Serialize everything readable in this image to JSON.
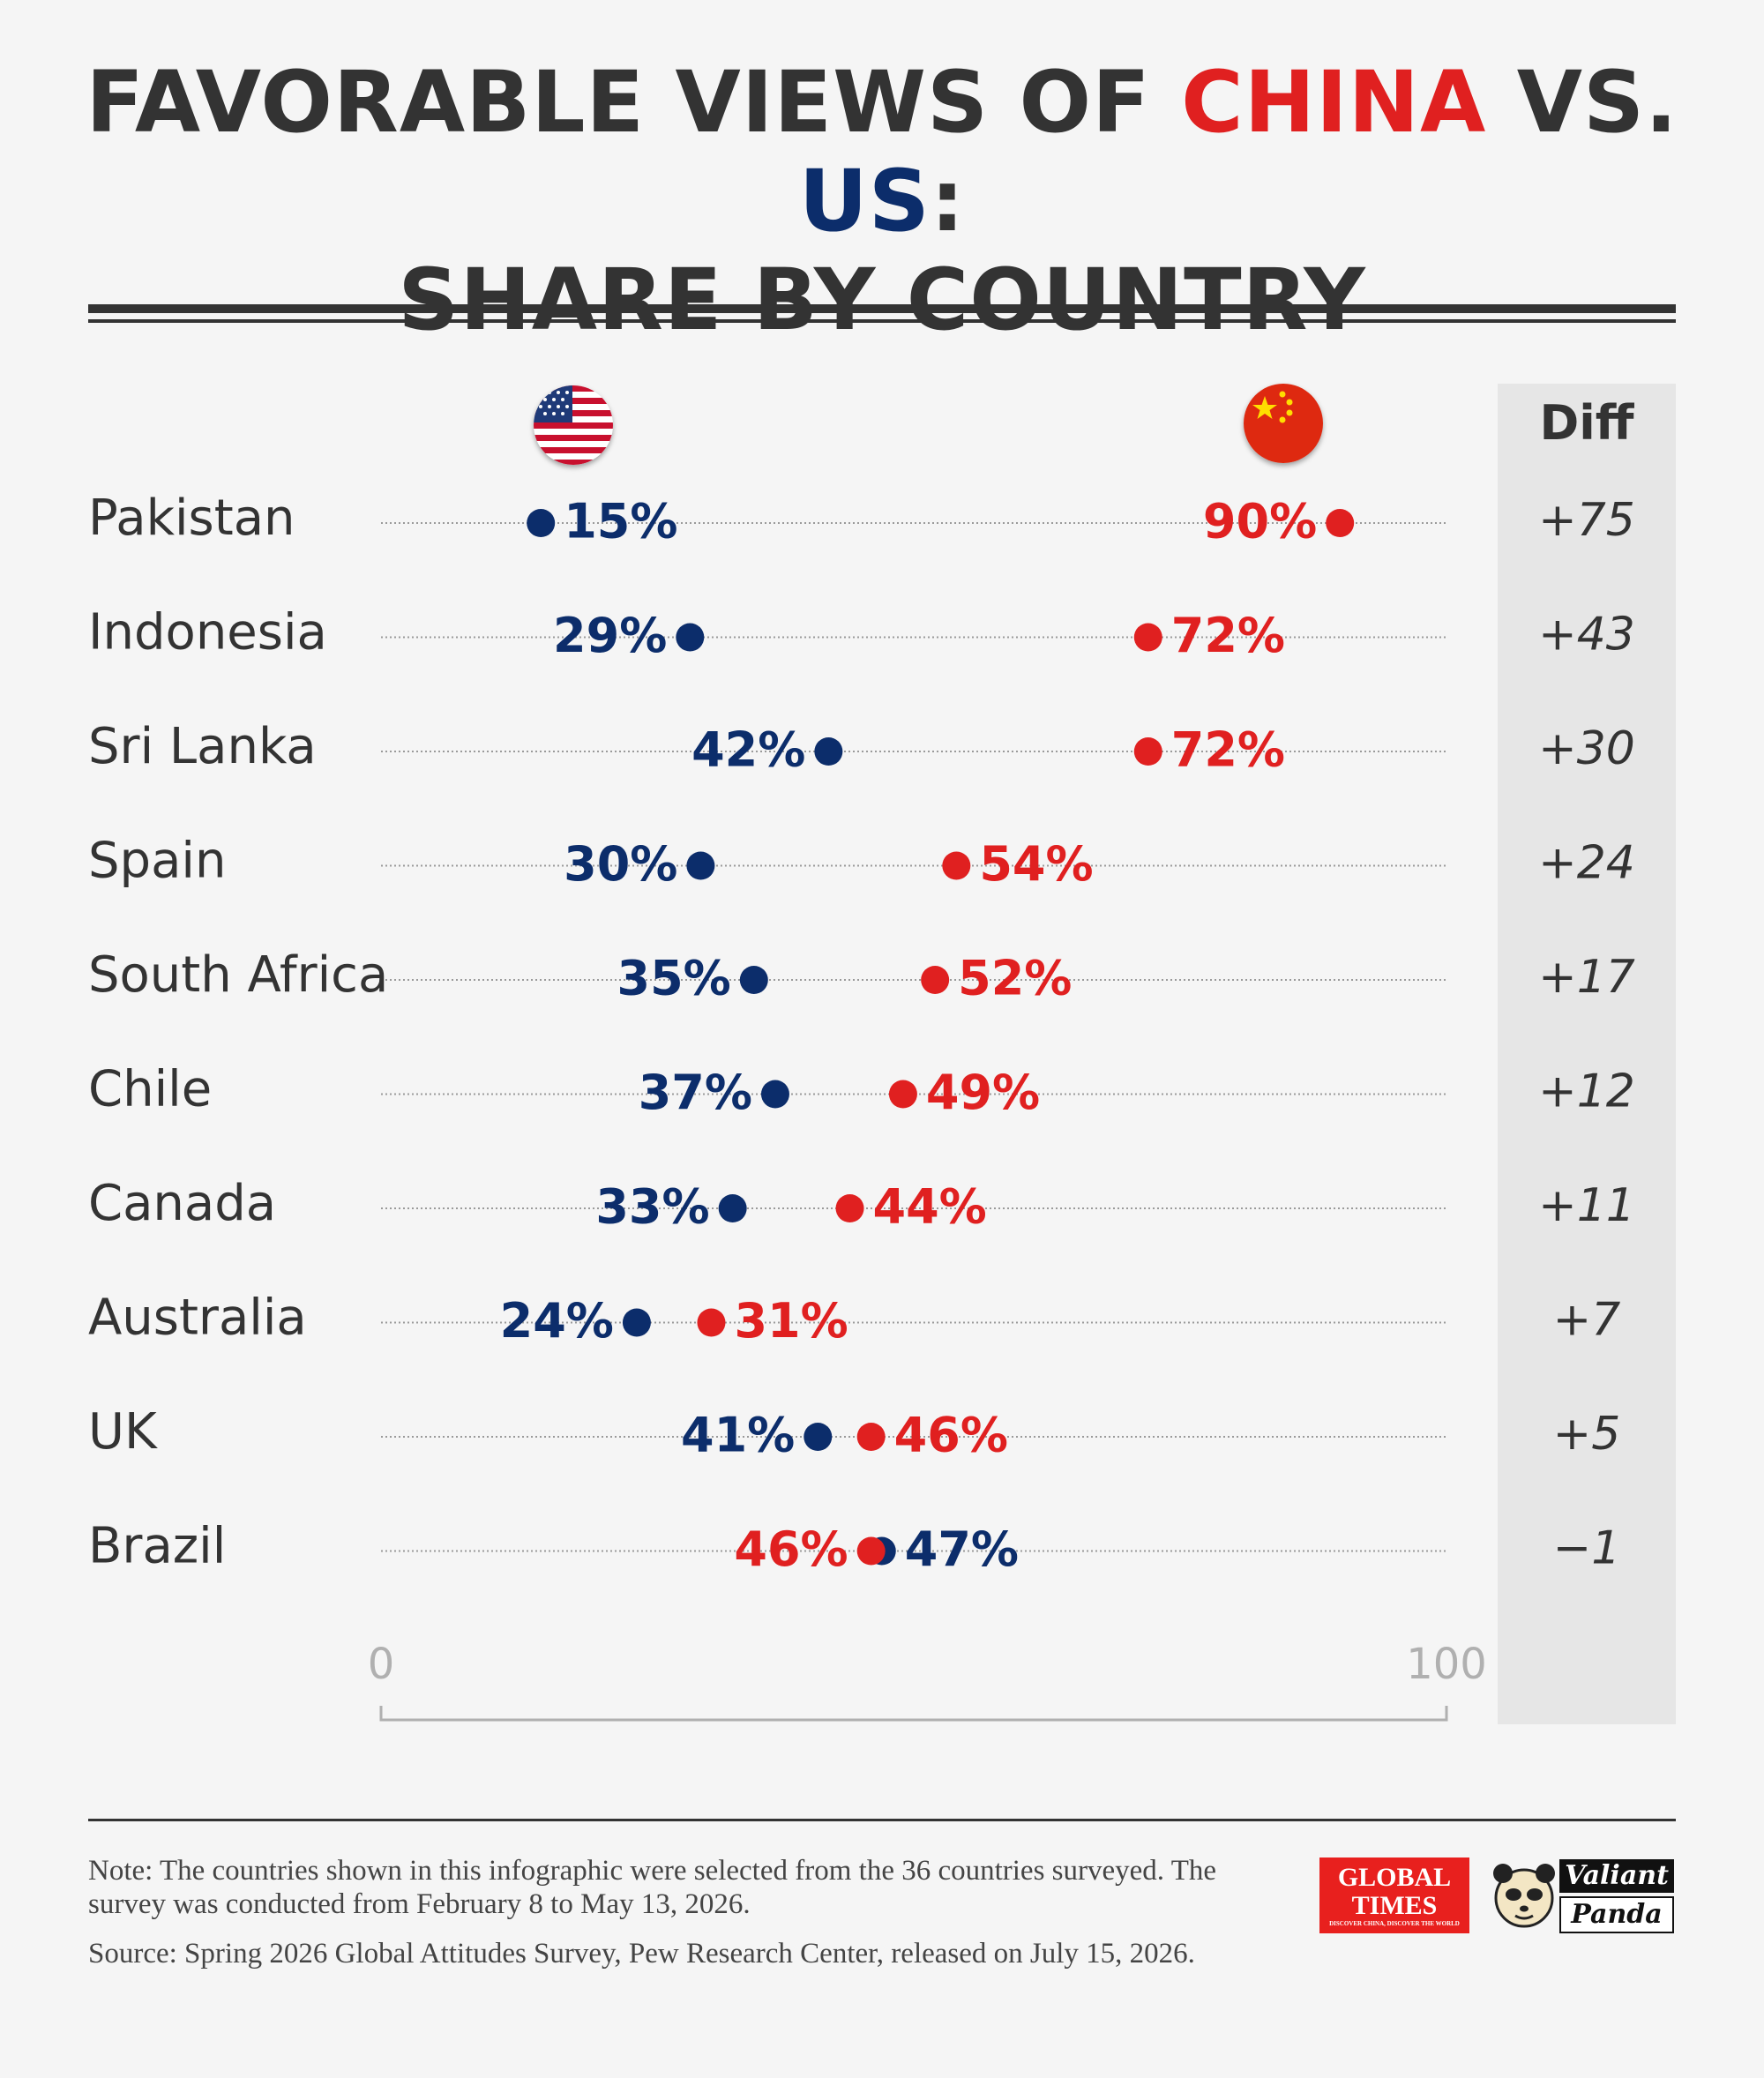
{
  "title": {
    "part1": "FAVORABLE VIEWS OF ",
    "china": "CHINA",
    "part2": " VS. ",
    "us": "US",
    "part3": ":",
    "line2": "SHARE BY COUNTRY"
  },
  "diff_header": "Diff",
  "colors": {
    "china": "#e02020",
    "us": "#0c2d6b",
    "text": "#333333"
  },
  "icons": {
    "us": "us-flag-icon",
    "china": "china-flag-icon"
  },
  "chart_data": {
    "type": "dot",
    "categories": [
      "Pakistan",
      "Indonesia",
      "Sri Lanka",
      "Spain",
      "South Africa",
      "Chile",
      "Canada",
      "Australia",
      "UK",
      "Brazil"
    ],
    "series": [
      {
        "key": "us",
        "values": [
          15,
          29,
          42,
          30,
          35,
          37,
          33,
          24,
          41,
          47
        ],
        "labels": [
          "15%",
          "29%",
          "42%",
          "30%",
          "35%",
          "37%",
          "33%",
          "24%",
          "41%",
          "47%"
        ]
      },
      {
        "key": "china",
        "values": [
          90,
          72,
          72,
          54,
          52,
          49,
          44,
          31,
          46,
          46
        ],
        "labels": [
          "90%",
          "72%",
          "72%",
          "54%",
          "52%",
          "49%",
          "44%",
          "31%",
          "46%",
          "46%"
        ]
      }
    ],
    "diff": [
      "+75",
      "+43",
      "+30",
      "+24",
      "+17",
      "+12",
      "+11",
      "+7",
      "+5",
      "−1"
    ],
    "xlim": [
      0,
      100
    ],
    "xticks": [
      "0",
      "100"
    ]
  },
  "footer": {
    "note": "Note: The countries shown in this infographic were selected from the 36 countries surveyed. The survey was conducted from February 8 to May 13, 2026.",
    "source": "Source: Spring 2026 Global Attitudes Survey, Pew Research Center, released on July 15, 2026."
  },
  "logos": {
    "global_times_line1": "GLOBAL",
    "global_times_line2": "TIMES",
    "global_times_tagline": "DISCOVER CHINA, DISCOVER THE WORLD",
    "valiant_panda_line1": "Valiant",
    "valiant_panda_line2": "Panda"
  }
}
